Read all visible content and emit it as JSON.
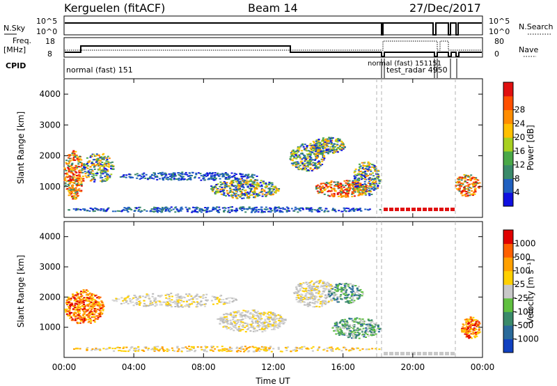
{
  "header": {
    "station": "Kerguelen (fitACF)",
    "beam": "Beam 14",
    "date": "27/Dec/2017"
  },
  "top_panels": {
    "nsky_label": "N.Sky",
    "nsearch_label": "N.Search",
    "nsky_ticks": [
      "10^5",
      "10^0"
    ],
    "nsearch_ticks": [
      "10^5",
      "10^0"
    ],
    "freq_label_1": "Freq.",
    "freq_label_2": "[MHz]",
    "freq_ticks": [
      "18",
      "8"
    ],
    "nave_label": "Nave",
    "nave_ticks": [
      "80",
      "0"
    ],
    "cpid_label": "CPID",
    "cpid_texts": [
      "normal (fast) 151",
      "normal (fast) 151151",
      "test_radar 4950"
    ]
  },
  "chart_data": [
    {
      "type": "heatmap",
      "name": "power",
      "ylabel": "Slant Range [km]",
      "xlabel": "",
      "xlim": [
        "00:00",
        "00:00"
      ],
      "ylim": [
        0,
        4500
      ],
      "y_ticks": [
        1000,
        2000,
        3000,
        4000
      ],
      "colorbar": {
        "label": "Power [dB]",
        "ticks": [
          "4",
          "8",
          "12",
          "16",
          "20",
          "24",
          "28"
        ],
        "colors": [
          "#1010e0",
          "#2060c0",
          "#3a8a6a",
          "#4aa848",
          "#a8d020",
          "#ffc000",
          "#ff8c00",
          "#ff5000",
          "#e01010"
        ]
      }
    },
    {
      "type": "heatmap",
      "name": "velocity",
      "ylabel": "Slant Range [km]",
      "xlabel": "Time UT",
      "x_ticks": [
        "00:00",
        "04:00",
        "08:00",
        "12:00",
        "16:00",
        "20:00",
        "00:00"
      ],
      "ylim": [
        0,
        4500
      ],
      "y_ticks": [
        1000,
        2000,
        3000,
        4000
      ],
      "colorbar": {
        "label": "Velocity [m s⁻¹]",
        "ticks": [
          "1000",
          "500",
          "100",
          "25",
          "-25",
          "-100",
          "-500",
          "-1000"
        ],
        "colors": [
          "#1040c0",
          "#2a6a9a",
          "#3a8a6a",
          "#60c040",
          "#c8c8c8",
          "#ffd000",
          "#ffa000",
          "#ff6000",
          "#e00000"
        ]
      }
    }
  ]
}
